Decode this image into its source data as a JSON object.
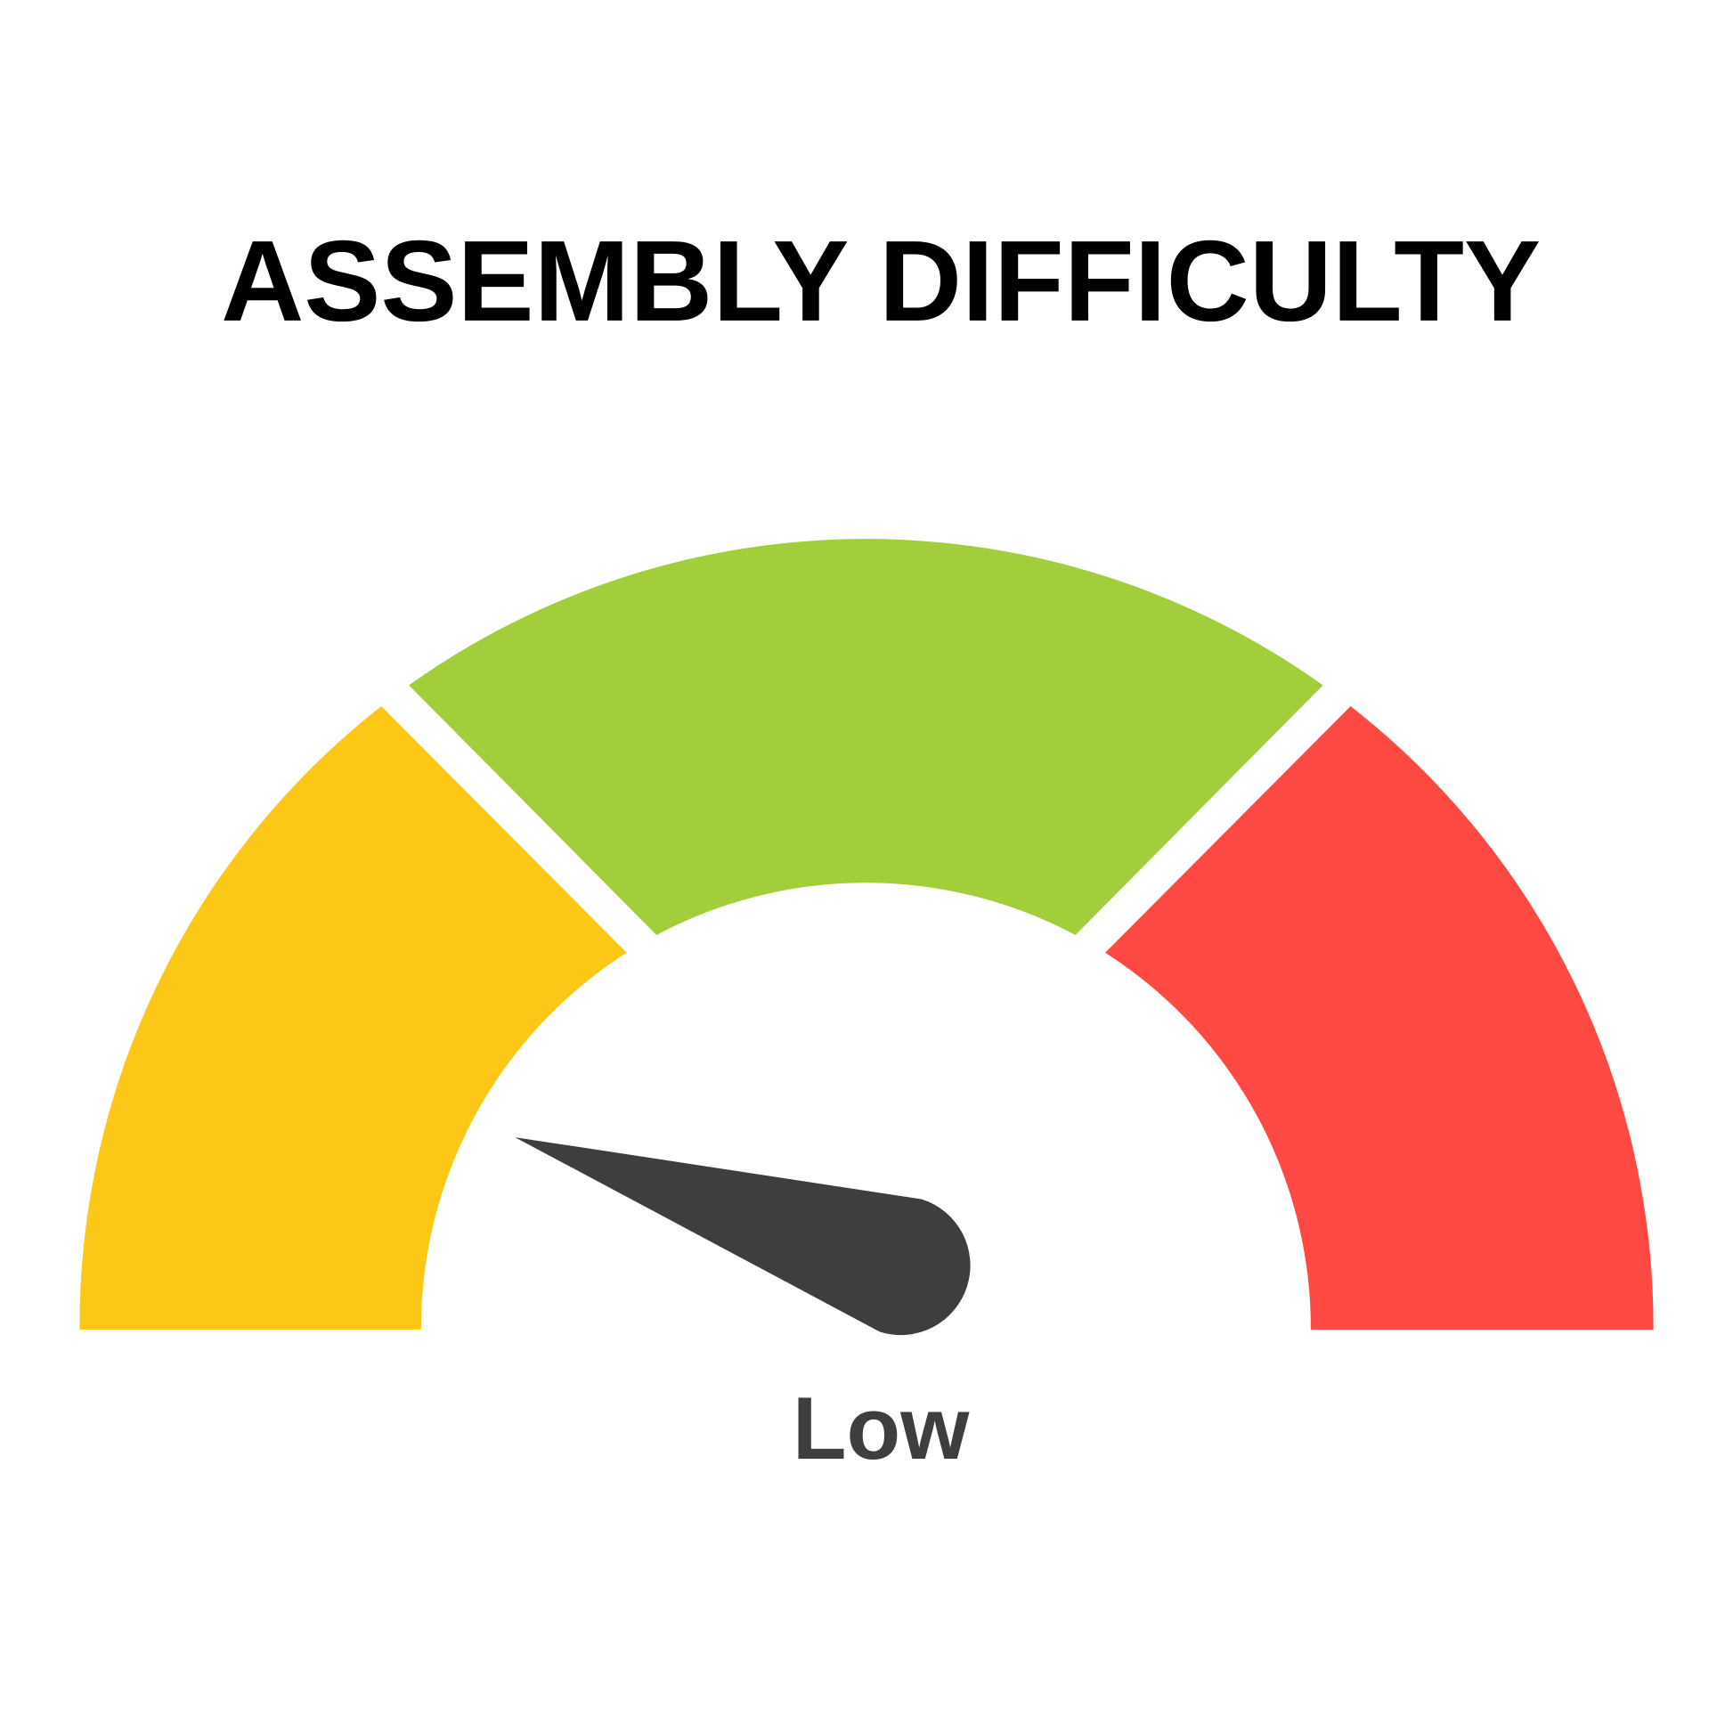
{
  "title": "ASSEMBLY DIFFICULTY",
  "gauge": {
    "segments": [
      {
        "level": "low",
        "color": "#FDC718"
      },
      {
        "level": "medium",
        "color": "#A3CE3B"
      },
      {
        "level": "high",
        "color": "#FF4942"
      }
    ],
    "needle_color": "#3E3E40",
    "needle_position": 0.1,
    "value_label": "Low",
    "value_label_color": "#3E3E40"
  }
}
